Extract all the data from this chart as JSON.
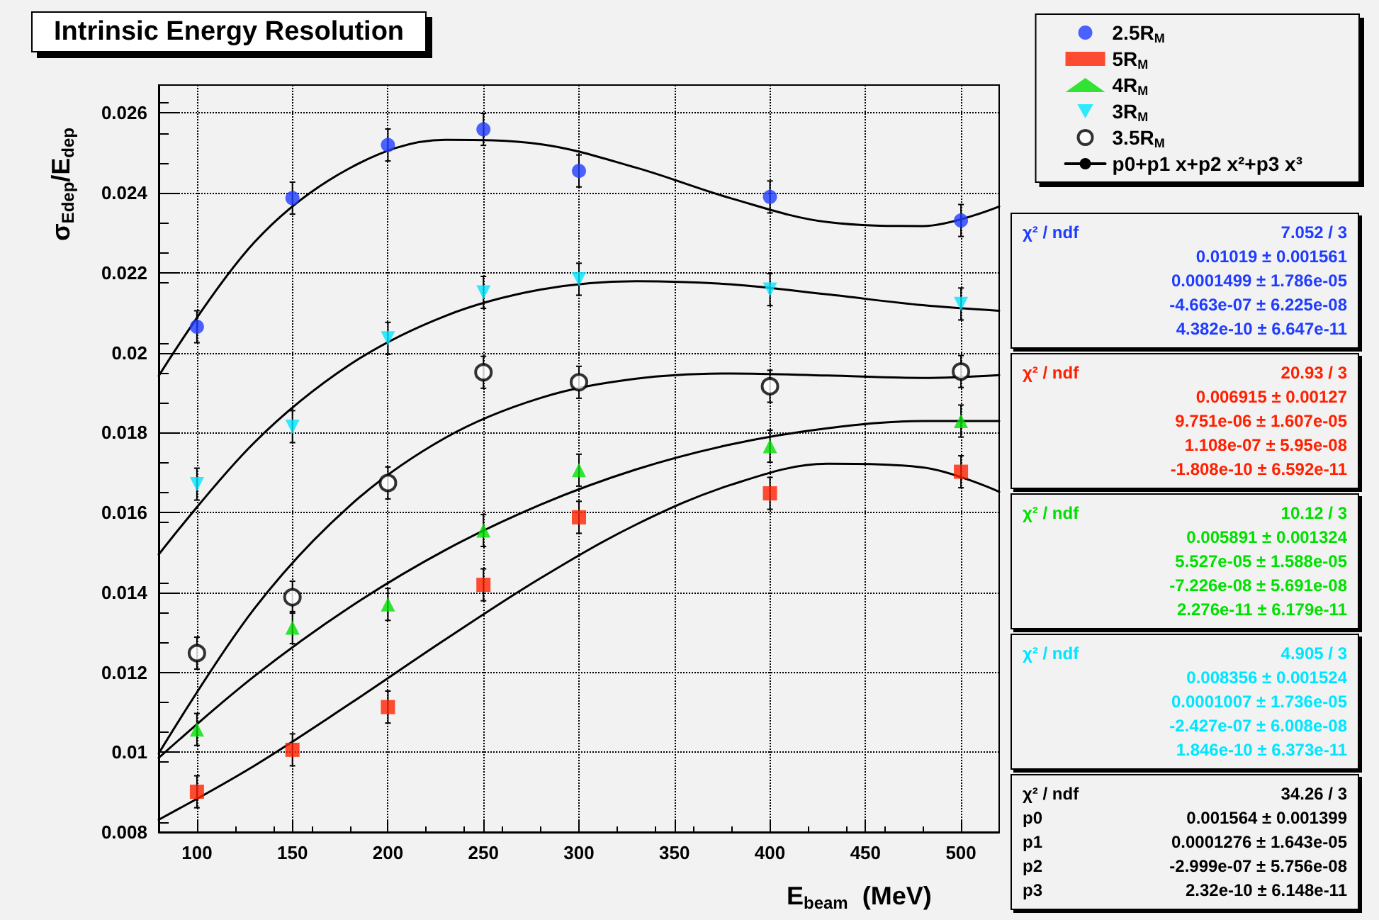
{
  "chart_data": {
    "type": "scatter",
    "title": "Intrinsic Energy Resolution",
    "xlabel": "E$_{beam}$  (MeV)",
    "ylabel": "σ$_{Edep}$/E$_{dep}$",
    "x": [
      100,
      150,
      200,
      250,
      300,
      400,
      500
    ],
    "xlim": [
      80,
      520
    ],
    "xticks": [
      100,
      150,
      200,
      250,
      300,
      350,
      400,
      450,
      500
    ],
    "ylim": [
      0.008,
      0.0267
    ],
    "yticks": [
      0.008,
      0.01,
      0.012,
      0.014,
      0.016,
      0.018,
      0.02,
      0.022,
      0.024,
      0.026
    ],
    "grid": true,
    "legend": "top right",
    "series": [
      {
        "name": "2.5R$_{M}$",
        "color": "#1f3cff",
        "marker": "circle",
        "values": [
          0.02065,
          0.02387,
          0.0252,
          0.02559,
          0.02455,
          0.0239,
          0.02331
        ],
        "errors": [
          0.0004,
          0.0004,
          0.0004,
          0.0004,
          0.0004,
          0.0004,
          0.0004
        ]
      },
      {
        "name": "5R$_{M}$",
        "color": "#ff2000",
        "marker": "square",
        "values": [
          0.00901,
          0.01006,
          0.01113,
          0.01419,
          0.01588,
          0.01648,
          0.01702
        ],
        "errors": [
          0.0004,
          0.0004,
          0.0004,
          0.0004,
          0.0004,
          0.0004,
          0.0004
        ]
      },
      {
        "name": "4R$_{M}$",
        "color": "#00e000",
        "marker": "triangle",
        "values": [
          0.01057,
          0.01312,
          0.0137,
          0.01555,
          0.01706,
          0.01766,
          0.01829
        ],
        "errors": [
          0.0004,
          0.0004,
          0.0004,
          0.0004,
          0.0004,
          0.0004,
          0.0004
        ]
      },
      {
        "name": "3R$_{M}$",
        "color": "#00e5ff",
        "marker": "triangle-down",
        "values": [
          0.01671,
          0.01815,
          0.02036,
          0.02151,
          0.02184,
          0.02158,
          0.02122
        ],
        "errors": [
          0.0004,
          0.0004,
          0.0004,
          0.0004,
          0.0004,
          0.0004,
          0.0004
        ]
      },
      {
        "name": "3.5R$_{M}$",
        "color": "#000000",
        "marker": "open-circle",
        "values": [
          0.01248,
          0.01388,
          0.01674,
          0.01951,
          0.01926,
          0.01916,
          0.01953
        ],
        "errors": [
          0.0004,
          0.0004,
          0.0004,
          0.0004,
          0.0004,
          0.0004,
          0.0004
        ]
      },
      {
        "name": "p0+p1 x+p2 x²+p3 x³",
        "type": "line",
        "color": "#000000",
        "marker": "none",
        "line_style": "solid",
        "x": [
          80,
          130,
          180,
          230,
          280,
          330,
          380,
          430,
          480,
          520
        ],
        "values": [
          0.01942,
          0.02276,
          0.02462,
          0.02533,
          0.02522,
          0.02463,
          0.02386,
          0.02327,
          0.02317,
          0.02366
        ]
      },
      {
        "type": "line",
        "color": "#000000",
        "marker": "none",
        "line_style": "solid",
        "x": [
          80,
          130,
          180,
          230,
          280,
          330,
          380,
          430,
          480,
          520
        ],
        "values": [
          0.00831,
          0.00966,
          0.01121,
          0.01282,
          0.01436,
          0.0157,
          0.0167,
          0.01722,
          0.01713,
          0.01652
        ]
      },
      {
        "type": "line",
        "color": "#000000",
        "marker": "none",
        "line_style": "solid",
        "x": [
          80,
          130,
          180,
          230,
          280,
          330,
          380,
          430,
          480,
          520
        ],
        "values": [
          0.00986,
          0.0119,
          0.01363,
          0.01506,
          0.0162,
          0.01708,
          0.01771,
          0.01811,
          0.01829,
          0.01829
        ]
      },
      {
        "type": "line",
        "color": "#000000",
        "marker": "none",
        "line_style": "solid",
        "x": [
          80,
          130,
          180,
          230,
          280,
          330,
          380,
          430,
          480,
          520
        ],
        "values": [
          0.01495,
          0.01775,
          0.0197,
          0.02092,
          0.02158,
          0.02179,
          0.02171,
          0.02146,
          0.02119,
          0.02105
        ]
      },
      {
        "type": "line",
        "color": "#000000",
        "marker": "none",
        "line_style": "solid",
        "x": [
          80,
          130,
          180,
          230,
          280,
          330,
          380,
          430,
          480,
          520
        ],
        "values": [
          0.00997,
          0.01359,
          0.01617,
          0.01787,
          0.01887,
          0.01935,
          0.01948,
          0.01943,
          0.01937,
          0.01944
        ]
      }
    ],
    "annotations": [
      "χ² / ndf\t7.052 / 3\n\t0.01019 ± 0.001561\n\t0.0001499 ± 1.786e-05\n\t-4.663e-07 ± 6.225e-08\n\t4.382e-10 ± 6.647e-11",
      "χ² / ndf\t20.93 / 3\n\t0.006915 ± 0.00127\n\t9.751e-06 ± 1.607e-05\n\t1.108e-07 ± 5.95e-08\n\t-1.808e-10 ± 6.592e-11",
      "χ² / ndf\t10.12 / 3\n\t0.005891 ± 0.001324\n\t5.527e-05 ± 1.588e-05\n\t-7.226e-08 ± 5.691e-08\n\t2.276e-11 ± 6.179e-11",
      "χ² / ndf\t4.905 / 3\n\t0.008356 ± 0.001524\n\t0.0001007 ± 1.736e-05\n\t-2.427e-07 ± 6.008e-08\n\t1.846e-10 ± 6.373e-11",
      "χ² / ndf\t34.26 / 3\np0\t0.001564 ± 0.001399\np1\t0.0001276 ± 1.643e-05\np2\t-2.999e-07 ± 5.756e-08\np3\t2.32e-10 ± 6.148e-11"
    ]
  }
}
